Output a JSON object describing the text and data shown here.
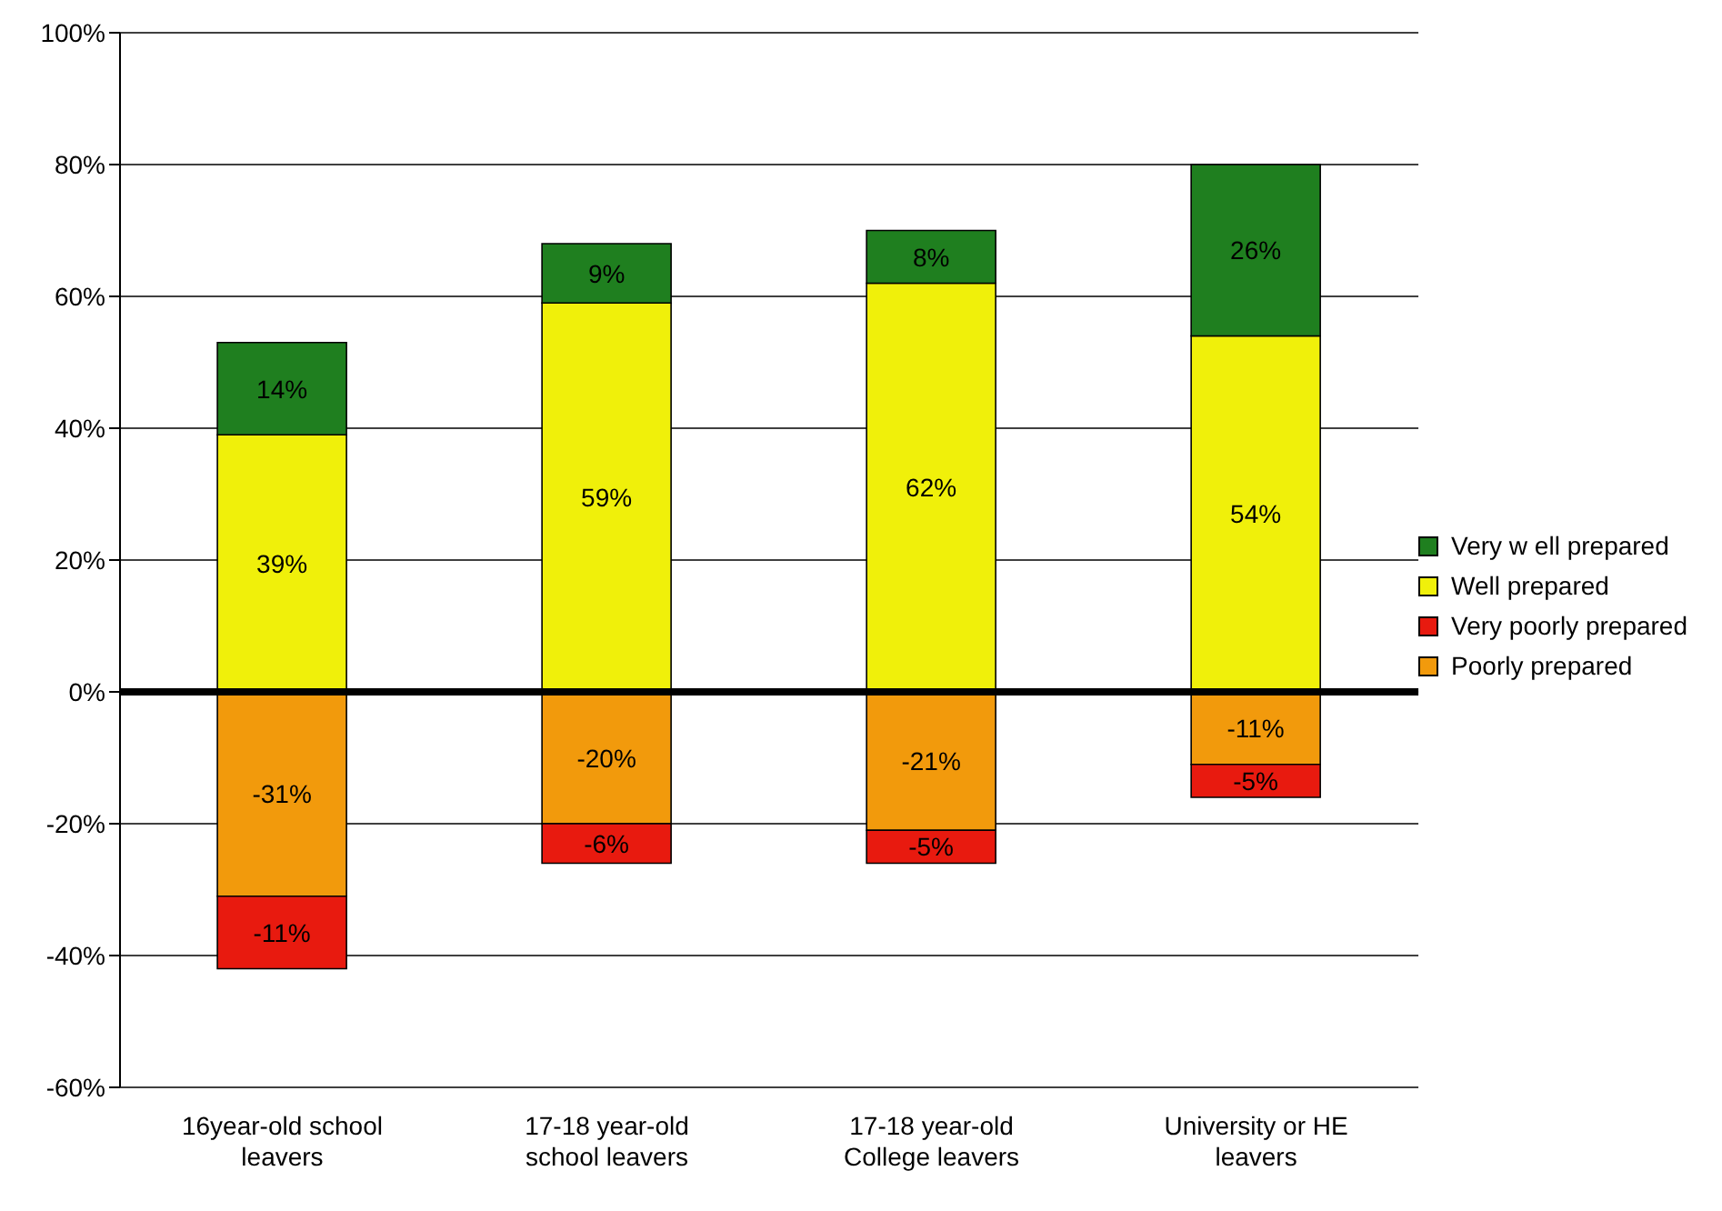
{
  "chart_data": {
    "type": "bar",
    "stacked": true,
    "categories": [
      "16year-old school leavers",
      "17-18 year-old school leavers",
      "17-18 year-old College leavers",
      "University or HE leavers"
    ],
    "series": [
      {
        "name": "Well prepared",
        "color": "#f0f00a",
        "values": [
          39,
          59,
          62,
          54
        ],
        "value_labels": [
          "39%",
          "59%",
          "62%",
          "54%"
        ]
      },
      {
        "name": "Very w ell prepared",
        "color": "#1f7f1f",
        "values": [
          14,
          9,
          8,
          26
        ],
        "value_labels": [
          "14%",
          "9%",
          "8%",
          "26%"
        ]
      },
      {
        "name": "Poorly prepared",
        "color": "#f29a0c",
        "values": [
          -31,
          -20,
          -21,
          -11
        ],
        "value_labels": [
          "-31%",
          "-20%",
          "-21%",
          "-11%"
        ]
      },
      {
        "name": "Very poorly prepared",
        "color": "#e81a0f",
        "values": [
          -11,
          -6,
          -5,
          -5
        ],
        "value_labels": [
          "-11%",
          "-6%",
          "-5%",
          "-5%"
        ]
      }
    ],
    "ylim": [
      -60,
      100
    ],
    "yticks": [
      {
        "value": -60,
        "label": "-60%"
      },
      {
        "value": -40,
        "label": "-40%"
      },
      {
        "value": -20,
        "label": "-20%"
      },
      {
        "value": 0,
        "label": "0%"
      },
      {
        "value": 20,
        "label": "20%"
      },
      {
        "value": 40,
        "label": "40%"
      },
      {
        "value": 60,
        "label": "60%"
      },
      {
        "value": 80,
        "label": "80%"
      },
      {
        "value": 100,
        "label": "100%"
      }
    ],
    "grid": "y",
    "legend": "right",
    "ref_lines": [
      {
        "axis": "y",
        "value": 0,
        "color": "#000000"
      }
    ]
  }
}
